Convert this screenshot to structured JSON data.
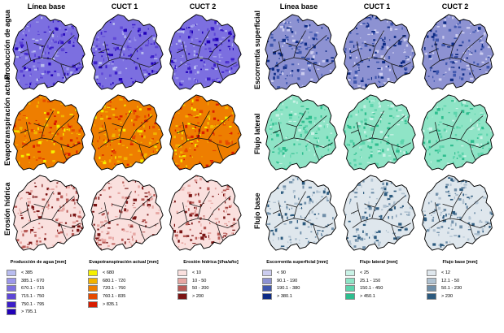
{
  "columns": [
    "Línea base",
    "CUCT 1",
    "CUCT 2"
  ],
  "rows_left": [
    "Producción de agua",
    "Evapotranspiración actual",
    "Erosión hídrica"
  ],
  "rows_right": [
    "Escorrentía superficial",
    "Flujo lateral",
    "Flujo base"
  ],
  "palettes": {
    "produccion": [
      "#b8bcef",
      "#9c97ea",
      "#7c6fe0",
      "#5d46d6",
      "#3b1ec8",
      "#2000b8"
    ],
    "evapo": [
      "#f5f000",
      "#f2b400",
      "#ee7e00",
      "#e54a00",
      "#d81c00"
    ],
    "erosion": [
      "#fae0de",
      "#e7a7a3",
      "#b85a56",
      "#7a1414"
    ],
    "escorrentia": [
      "#cbccef",
      "#8d92d2",
      "#3e56ad",
      "#0d2b84"
    ],
    "lateral": [
      "#c9f2e6",
      "#8fe4c6",
      "#5cd4ac",
      "#2ebd8e"
    ],
    "base": [
      "#dfe7ed",
      "#b0c2d1",
      "#6f8ea8",
      "#2c5a7e"
    ]
  },
  "legends": [
    {
      "title": "Producción de agua [mm]",
      "items": [
        "< 385",
        "385.1 - 670",
        "670.1 - 715",
        "715.1 - 750",
        "750.1 - 795",
        "> 795.1"
      ]
    },
    {
      "title": "Evapotranspiración actual [mm]",
      "items": [
        "< 680",
        "680.1 - 720",
        "720.1 - 760",
        "760.1 - 835",
        "> 835.1"
      ]
    },
    {
      "title": "Erosión hídrica [t/ha/año]",
      "items": [
        "< 10",
        "10 - 50",
        "50 - 200",
        "> 200"
      ]
    },
    {
      "title": "Escorrentía superficial [mm]",
      "items": [
        "< 90",
        "90.1 - 190",
        "190.1 - 380",
        "> 380.1"
      ]
    },
    {
      "title": "Flujo lateral [mm]",
      "items": [
        "< 25",
        "25.1 - 150",
        "150.1 - 450",
        "> 450.1"
      ]
    },
    {
      "title": "Flujo base [mm]",
      "items": [
        "< 12",
        "12.1 - 50",
        "50.1 - 230",
        "> 230"
      ]
    }
  ]
}
